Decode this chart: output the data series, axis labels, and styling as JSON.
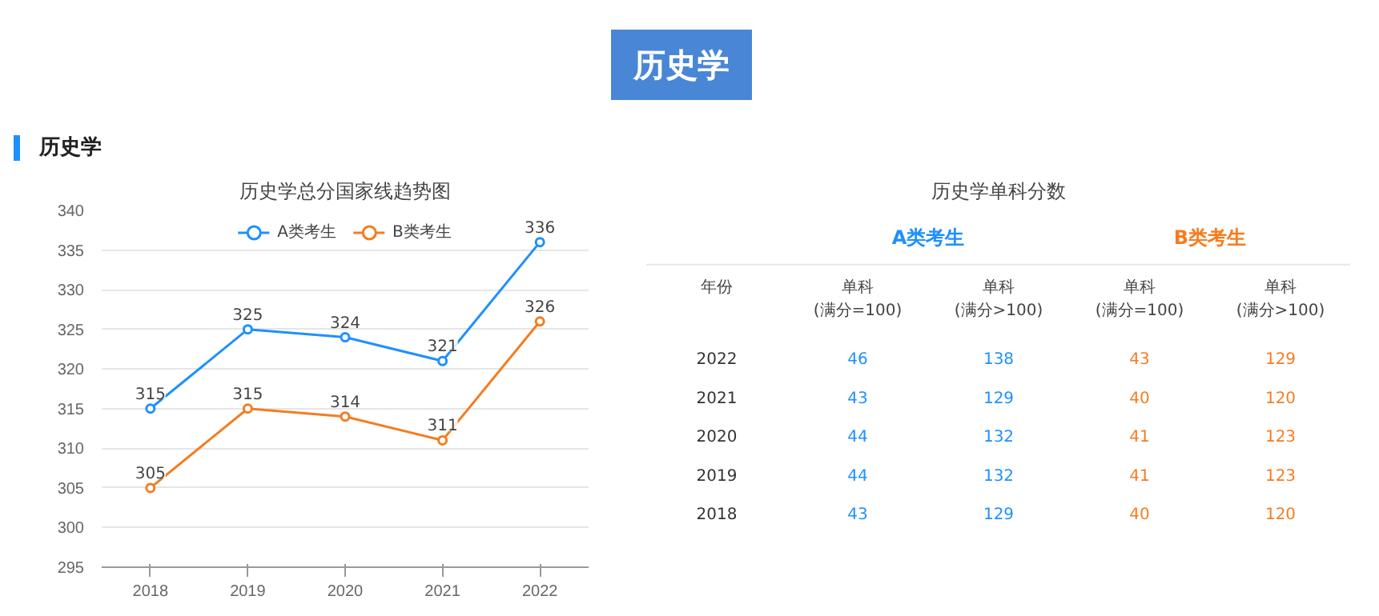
{
  "chart_data": [
    {
      "type": "line",
      "title": "历史学总分国家线趋势图",
      "annotations": [
        "历史学",
        "历史学"
      ],
      "categories": [
        "2018",
        "2019",
        "2020",
        "2021",
        "2022"
      ],
      "series": [
        {
          "name": "A类考生",
          "color": "#1e90ff",
          "values": [
            315,
            325,
            324,
            321,
            336
          ]
        },
        {
          "name": "B类考生",
          "color": "#f57c20",
          "values": [
            305,
            315,
            314,
            311,
            326
          ]
        }
      ],
      "ylim": [
        295,
        340
      ],
      "yticks": [
        295,
        300,
        305,
        310,
        315,
        320,
        325,
        330,
        335,
        340
      ],
      "grid": "y",
      "legend": "top",
      "marker": "circle",
      "data_labels": true
    },
    {
      "type": "heatmap",
      "title": "历史学单科分数",
      "ylabel": "年份",
      "annotations": [
        "A类考生",
        "B类考生"
      ],
      "categories": [
        "单科\n(满分=100)",
        "单科\n(满分>100)",
        "单科\n(满分=100)",
        "单科\n(满分>100)"
      ],
      "y_categories": [
        "2022",
        "2021",
        "2020",
        "2019",
        "2018"
      ],
      "colors": [
        "#1e90ff",
        "#1e90ff",
        "#f57c20",
        "#f57c20"
      ],
      "data_labels": true,
      "cells": [
        [
          46,
          138,
          43,
          129
        ],
        [
          43,
          129,
          40,
          120
        ],
        [
          44,
          132,
          41,
          123
        ],
        [
          44,
          132,
          41,
          123
        ],
        [
          43,
          129,
          40,
          120
        ]
      ]
    }
  ]
}
